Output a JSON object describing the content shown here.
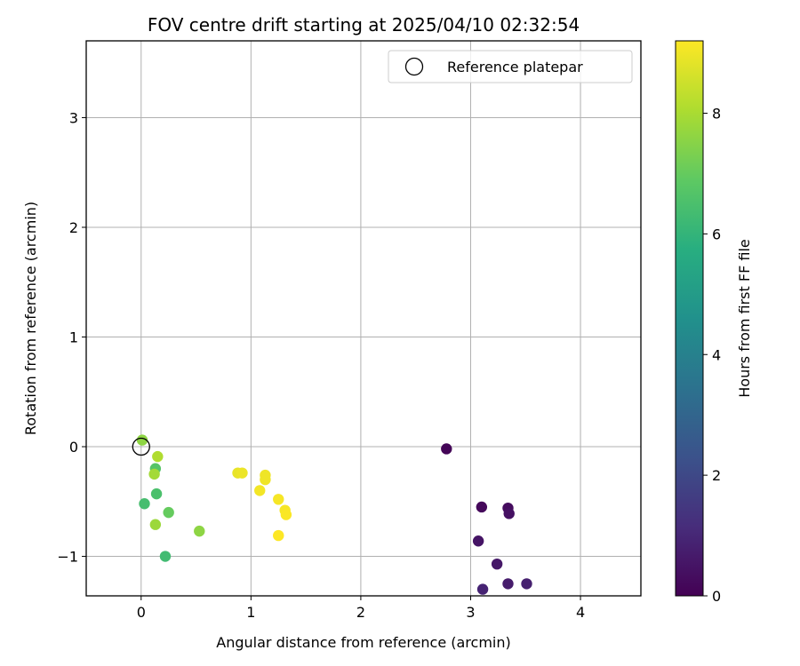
{
  "chart_data": {
    "type": "scatter",
    "title": "FOV centre drift starting at 2025/04/10 02:32:54",
    "xlabel": "Angular distance from reference (arcmin)",
    "ylabel": "Rotation from reference (arcmin)",
    "xlim": [
      -0.5,
      4.55
    ],
    "ylim": [
      -1.36,
      3.7
    ],
    "xticks": [
      0,
      1,
      2,
      3,
      4
    ],
    "yticks": [
      -1,
      0,
      1,
      2,
      3
    ],
    "xtick_labels": [
      "0",
      "1",
      "2",
      "3",
      "4"
    ],
    "ytick_labels": [
      "−1",
      "0",
      "1",
      "2",
      "3"
    ],
    "grid": true,
    "colormap": "viridis",
    "colorbar": {
      "label": "Hours from first FF file",
      "range": [
        0,
        9.2
      ],
      "ticks": [
        0,
        2,
        4,
        6,
        8
      ],
      "tick_labels": [
        "0",
        "2",
        "4",
        "6",
        "8"
      ]
    },
    "legend": {
      "position": "top-right",
      "entries": [
        {
          "label": "Reference platepar",
          "marker": "open-circle"
        }
      ]
    },
    "reference_point": {
      "x": 0.0,
      "y": 0.0
    },
    "points": [
      {
        "x": 2.78,
        "y": -0.02,
        "hours": 0.1
      },
      {
        "x": 3.1,
        "y": -0.55,
        "hours": 0.2
      },
      {
        "x": 3.34,
        "y": -0.56,
        "hours": 0.3
      },
      {
        "x": 3.35,
        "y": -0.61,
        "hours": 0.4
      },
      {
        "x": 3.07,
        "y": -0.86,
        "hours": 0.5
      },
      {
        "x": 3.24,
        "y": -1.07,
        "hours": 0.6
      },
      {
        "x": 3.34,
        "y": -1.25,
        "hours": 0.7
      },
      {
        "x": 3.51,
        "y": -1.25,
        "hours": 0.8
      },
      {
        "x": 3.11,
        "y": -1.3,
        "hours": 0.9
      },
      {
        "x": 0.22,
        "y": -1.0,
        "hours": 6.3
      },
      {
        "x": 0.03,
        "y": -0.52,
        "hours": 6.4
      },
      {
        "x": 0.14,
        "y": -0.43,
        "hours": 6.5
      },
      {
        "x": 0.13,
        "y": -0.2,
        "hours": 6.7
      },
      {
        "x": 0.25,
        "y": -0.6,
        "hours": 7.0
      },
      {
        "x": 0.53,
        "y": -0.77,
        "hours": 7.6
      },
      {
        "x": 0.13,
        "y": -0.71,
        "hours": 7.8
      },
      {
        "x": 0.12,
        "y": -0.25,
        "hours": 7.9
      },
      {
        "x": 0.01,
        "y": 0.06,
        "hours": 7.6
      },
      {
        "x": 0.15,
        "y": -0.09,
        "hours": 8.1
      },
      {
        "x": 0.88,
        "y": -0.24,
        "hours": 8.9
      },
      {
        "x": 0.92,
        "y": -0.24,
        "hours": 8.95
      },
      {
        "x": 1.13,
        "y": -0.26,
        "hours": 9.0
      },
      {
        "x": 1.13,
        "y": -0.3,
        "hours": 9.0
      },
      {
        "x": 1.08,
        "y": -0.4,
        "hours": 9.05
      },
      {
        "x": 1.25,
        "y": -0.48,
        "hours": 9.1
      },
      {
        "x": 1.31,
        "y": -0.58,
        "hours": 9.1
      },
      {
        "x": 1.32,
        "y": -0.62,
        "hours": 9.15
      },
      {
        "x": 1.25,
        "y": -0.81,
        "hours": 9.2
      }
    ]
  }
}
